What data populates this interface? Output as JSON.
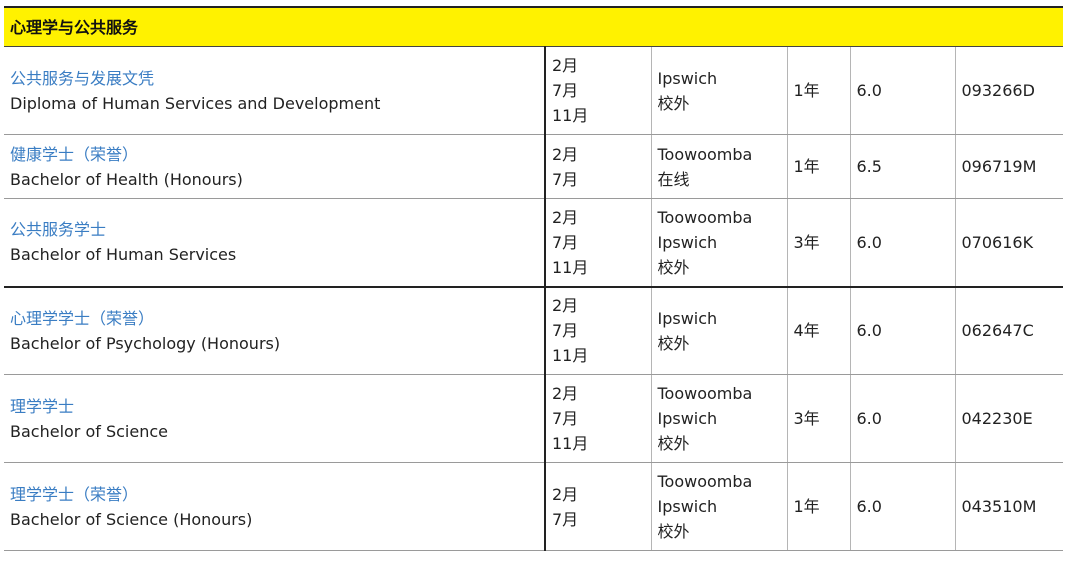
{
  "section_title": "心理学与公共服务",
  "rows": [
    {
      "name_zh": "公共服务与发展文凭",
      "name_en": "Diploma of Human Services and Development",
      "intakes": [
        "2月",
        "7月",
        "11月"
      ],
      "campuses": [
        "Ipswich",
        "校外"
      ],
      "duration": "1年",
      "ielts": "6.0",
      "cricos": "093266D"
    },
    {
      "name_zh": "健康学士（荣誉）",
      "name_en": "Bachelor of Health (Honours)",
      "intakes": [
        "2月",
        "7月"
      ],
      "campuses": [
        "Toowoomba",
        "在线"
      ],
      "duration": "1年",
      "ielts": "6.5",
      "cricos": "096719M"
    },
    {
      "name_zh": "公共服务学士",
      "name_en": "Bachelor of Human Services",
      "intakes": [
        "2月",
        "7月",
        "11月"
      ],
      "campuses": [
        "Toowoomba",
        "Ipswich",
        "校外"
      ],
      "duration": "3年",
      "ielts": "6.0",
      "cricos": "070616K"
    },
    {
      "name_zh": "心理学学士（荣誉）",
      "name_en": "Bachelor of Psychology (Honours)",
      "intakes": [
        "2月",
        "7月",
        "11月"
      ],
      "campuses": [
        "Ipswich",
        "校外"
      ],
      "duration": "4年",
      "ielts": "6.0",
      "cricos": "062647C"
    },
    {
      "name_zh": "理学学士",
      "name_en": "Bachelor of Science",
      "intakes": [
        "2月",
        "7月",
        "11月"
      ],
      "campuses": [
        "Toowoomba",
        "Ipswich",
        "校外"
      ],
      "duration": "3年",
      "ielts": "6.0",
      "cricos": "042230E"
    },
    {
      "name_zh": "理学学士（荣誉）",
      "name_en": "Bachelor of Science (Honours)",
      "intakes": [
        "2月",
        "7月"
      ],
      "campuses": [
        "Toowoomba",
        "Ipswich",
        "校外"
      ],
      "duration": "1年",
      "ielts": "6.0",
      "cricos": "043510M"
    }
  ]
}
